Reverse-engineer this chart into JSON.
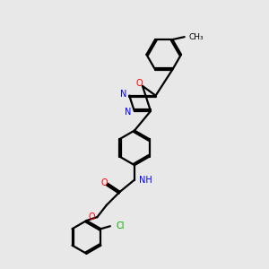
{
  "background_color": "#e8e8e8",
  "bond_color": "#000000",
  "atom_colors": {
    "N": "#0000ff",
    "O": "#ff0000",
    "Cl": "#00aa00",
    "C": "#000000",
    "H": "#000000"
  },
  "figsize": [
    3.0,
    3.0
  ],
  "dpi": 100
}
